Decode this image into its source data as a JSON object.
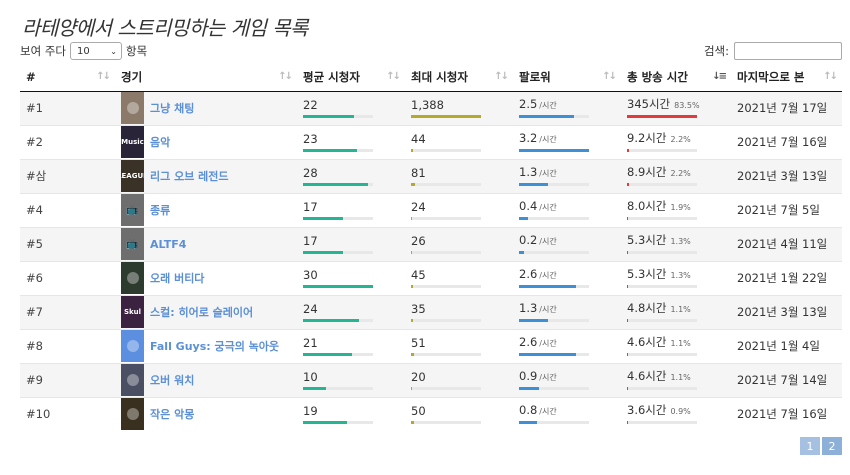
{
  "title": "라테양에서 스트리밍하는 게임 목록",
  "controls": {
    "show_prefix": "보여 주다",
    "entries_value": "10",
    "show_suffix": "항목",
    "search_label": "검색:",
    "search_value": ""
  },
  "columns": {
    "rank": "#",
    "game": "경기",
    "avg_viewers": "평균 시청자",
    "max_viewers": "최대 시청자",
    "followers": "팔로워",
    "stream_time": "총 방송 시간",
    "last_seen": "마지막으로 본"
  },
  "units": {
    "followers": "/시간"
  },
  "rows": [
    {
      "rank": "#1",
      "game": "그냥 채팅",
      "thumb": "chatting",
      "thumb_color": "#8b7a6a",
      "avg": "22",
      "avg_frac": 0.73,
      "max": "1,388",
      "max_frac": 1.0,
      "followers": "2.5",
      "fol_frac": 0.78,
      "time": "345시간",
      "pct": "83.5%",
      "time_frac": 1.0,
      "last": "2021년 7월 17일"
    },
    {
      "rank": "#2",
      "game": "음악",
      "thumb": "music",
      "thumb_label": "Music",
      "thumb_color": "#2a2438",
      "avg": "23",
      "avg_frac": 0.77,
      "max": "44",
      "max_frac": 0.03,
      "followers": "3.2",
      "fol_frac": 1.0,
      "time": "9.2시간",
      "pct": "2.2%",
      "time_frac": 0.03,
      "last": "2021년 7월 16일"
    },
    {
      "rank": "#삼",
      "game": "리그 오브 레전드",
      "thumb": "league",
      "thumb_label": "LEAGUE",
      "thumb_color": "#3a3226",
      "avg": "28",
      "avg_frac": 0.93,
      "max": "81",
      "max_frac": 0.06,
      "followers": "1.3",
      "fol_frac": 0.41,
      "time": "8.9시간",
      "pct": "2.2%",
      "time_frac": 0.03,
      "last": "2021년 3월 13일"
    },
    {
      "rank": "#4",
      "game": "종류",
      "thumb": "placeholder",
      "thumb_color": "#6e6e6e",
      "avg": "17",
      "avg_frac": 0.57,
      "max": "24",
      "max_frac": 0.02,
      "followers": "0.4",
      "fol_frac": 0.13,
      "time": "8.0시간",
      "pct": "1.9%",
      "time_frac": 0.02,
      "last": "2021년 7월 5일"
    },
    {
      "rank": "#5",
      "game": "ALTF4",
      "thumb": "placeholder",
      "thumb_color": "#6e6e6e",
      "avg": "17",
      "avg_frac": 0.57,
      "max": "26",
      "max_frac": 0.02,
      "followers": "0.2",
      "fol_frac": 0.07,
      "time": "5.3시간",
      "pct": "1.3%",
      "time_frac": 0.02,
      "last": "2021년 4월 11일"
    },
    {
      "rank": "#6",
      "game": "오래 버티다",
      "thumb": "dont-starve",
      "thumb_color": "#2d3a2e",
      "avg": "30",
      "avg_frac": 1.0,
      "max": "45",
      "max_frac": 0.03,
      "followers": "2.6",
      "fol_frac": 0.81,
      "time": "5.3시간",
      "pct": "1.3%",
      "time_frac": 0.02,
      "last": "2021년 1월 22일"
    },
    {
      "rank": "#7",
      "game": "스컬: 히어로 슬레이어",
      "thumb": "skul",
      "thumb_label": "Skul",
      "thumb_color": "#3b2240",
      "avg": "24",
      "avg_frac": 0.8,
      "max": "35",
      "max_frac": 0.03,
      "followers": "1.3",
      "fol_frac": 0.41,
      "time": "4.8시간",
      "pct": "1.1%",
      "time_frac": 0.01,
      "last": "2021년 3월 13일"
    },
    {
      "rank": "#8",
      "game": "Fall Guys: 궁극의 녹아웃",
      "thumb": "fall-guys",
      "thumb_color": "#5c8fe0",
      "avg": "21",
      "avg_frac": 0.7,
      "max": "51",
      "max_frac": 0.04,
      "followers": "2.6",
      "fol_frac": 0.81,
      "time": "4.6시간",
      "pct": "1.1%",
      "time_frac": 0.01,
      "last": "2021년 1월 4일"
    },
    {
      "rank": "#9",
      "game": "오버 워치",
      "thumb": "overwatch",
      "thumb_color": "#4a4f63",
      "avg": "10",
      "avg_frac": 0.33,
      "max": "20",
      "max_frac": 0.01,
      "followers": "0.9",
      "fol_frac": 0.28,
      "time": "4.6시간",
      "pct": "1.1%",
      "time_frac": 0.01,
      "last": "2021년 7월 14일"
    },
    {
      "rank": "#10",
      "game": "작은 악몽",
      "thumb": "little-nightmares",
      "thumb_color": "#3a3020",
      "avg": "19",
      "avg_frac": 0.63,
      "max": "50",
      "max_frac": 0.04,
      "followers": "0.8",
      "fol_frac": 0.25,
      "time": "3.6시간",
      "pct": "0.9%",
      "time_frac": 0.01,
      "last": "2021년 7월 16일"
    }
  ],
  "colors": {
    "avg_bar": "#26b592",
    "max_bar": "#b5a92c",
    "followers_bar": "#3d8fd6",
    "time_bar": "#e23b3b",
    "link": "#5b8fd6"
  },
  "pagination": {
    "pages": [
      "1",
      "2"
    ],
    "current": "1"
  }
}
